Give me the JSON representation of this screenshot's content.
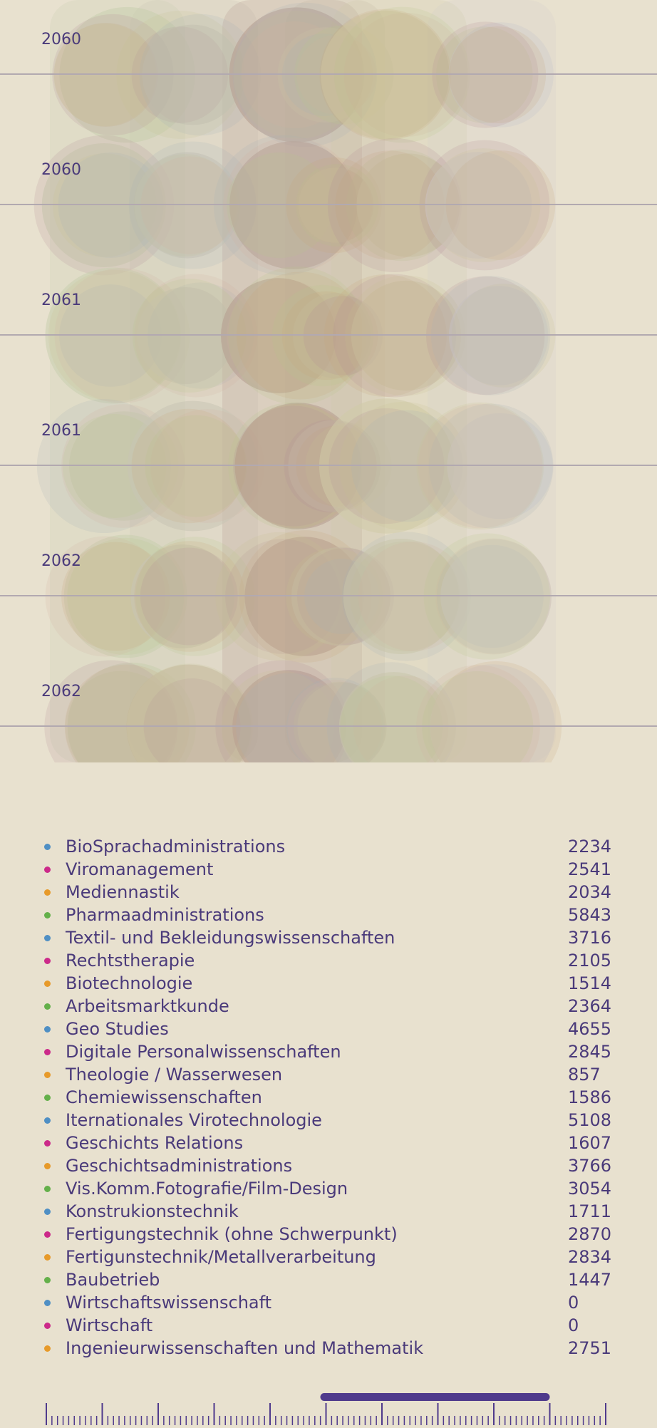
{
  "colors": {
    "background": "#e8e1cf",
    "text": "#4a3a7a",
    "row_line": "#b2a9b0",
    "scrubber": "#4f3a8c",
    "dot_cycle": [
      "#4f8fc4",
      "#cc2a8a",
      "#e79a2a",
      "#64b04a"
    ]
  },
  "chart_data": {
    "type": "bubble-timeline",
    "title": "",
    "rows": [
      {
        "year_label": "2060"
      },
      {
        "year_label": "2060"
      },
      {
        "year_label": "2061"
      },
      {
        "year_label": "2061"
      },
      {
        "year_label": "2062"
      },
      {
        "year_label": "2062"
      }
    ],
    "columns": [
      {
        "label": "",
        "tint": "#c9cfae"
      },
      {
        "label": "",
        "tint": "#c8c5b5"
      },
      {
        "label": "",
        "tint": "#b59b8e"
      },
      {
        "label": "",
        "tint": "#c4b9a4"
      },
      {
        "label": "",
        "tint": "#cfcaa7"
      },
      {
        "label": "",
        "tint": "#d4d0cc"
      }
    ],
    "legend": [
      {
        "name": "BioSprachadministrations",
        "value": 2234
      },
      {
        "name": "Viromanagement",
        "value": 2541
      },
      {
        "name": "Mediennastik",
        "value": 2034
      },
      {
        "name": "Pharmaadministrations",
        "value": 5843
      },
      {
        "name": "Textil- und Bekleidungswissenschaften",
        "value": 3716
      },
      {
        "name": "Rechtstherapie",
        "value": 2105
      },
      {
        "name": "Biotechnologie",
        "value": 1514
      },
      {
        "name": "Arbeitsmarktkunde",
        "value": 2364
      },
      {
        "name": "Geo Studies",
        "value": 4655
      },
      {
        "name": "Digitale Personalwissenschaften",
        "value": 2845
      },
      {
        "name": "Theologie / Wasserwesen",
        "value": 857
      },
      {
        "name": "Chemiewissenschaften",
        "value": 1586
      },
      {
        "name": "Iternationales Virotechnologie",
        "value": 5108
      },
      {
        "name": "Geschichts Relations",
        "value": 1607
      },
      {
        "name": "Geschichtsadministrations",
        "value": 3766
      },
      {
        "name": "Vis.Komm.Fotografie/Film-Design",
        "value": 3054
      },
      {
        "name": "Konstrukionstechnik",
        "value": 1711
      },
      {
        "name": "Fertigungstechnik (ohne Schwerpunkt)",
        "value": 2870
      },
      {
        "name": "Fertigunstechnik/Metallverarbeitung",
        "value": 2834
      },
      {
        "name": "Baubetrieb",
        "value": 1447
      },
      {
        "name": "Wirtschaftswissenschaft",
        "value": 0
      },
      {
        "name": "Wirtschaft",
        "value": 0
      },
      {
        "name": "Ingenieurwissenschaften und Mathematik",
        "value": 2751
      }
    ],
    "timeline": {
      "major_ticks": 11,
      "minor_per_major": 9,
      "selection_start": 0.5,
      "selection_end": 0.9
    }
  }
}
